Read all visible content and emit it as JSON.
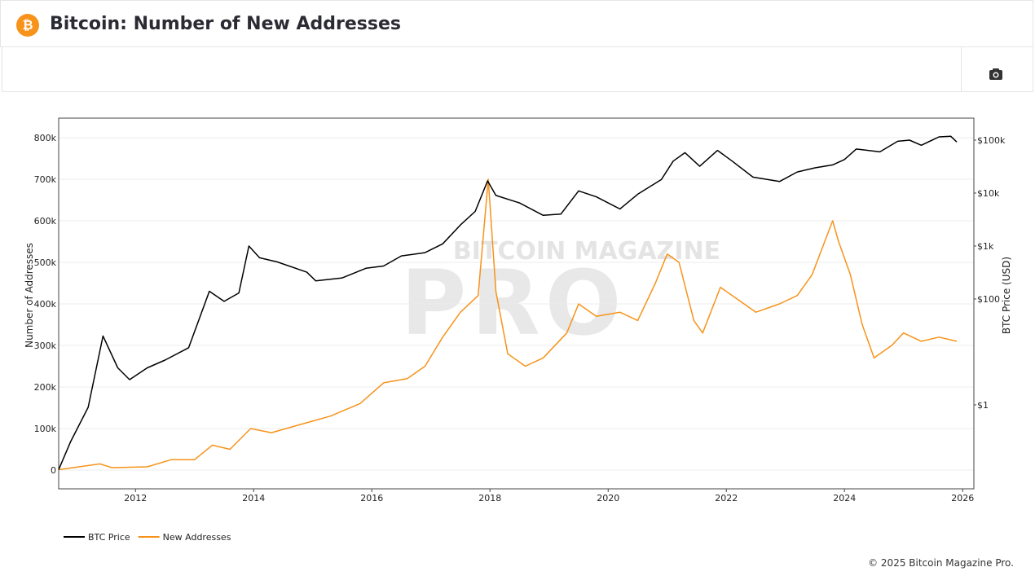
{
  "header": {
    "title": "Bitcoin: Number of New Addresses"
  },
  "footer": {
    "copyright": "© 2025 Bitcoin Magazine Pro."
  },
  "chart_data": {
    "type": "line",
    "watermark": [
      "BITCOIN MAGAZINE",
      "PRO"
    ],
    "y_label": "Number of Addresses",
    "y2_label": "BTC Price (USD)",
    "xlim": [
      2010.7,
      2026.19
    ],
    "xticks": [
      2012,
      2014,
      2016,
      2018,
      2020,
      2022,
      2024,
      2026
    ],
    "ylim": [
      -45000,
      847000
    ],
    "yticks": [
      0,
      {
        "value": 100000,
        "label": "100k"
      },
      {
        "value": 200000,
        "label": "200k"
      },
      {
        "value": 300000,
        "label": "300k"
      },
      {
        "value": 400000,
        "label": "400k"
      },
      {
        "value": 500000,
        "label": "500k"
      },
      {
        "value": 600000,
        "label": "600k"
      },
      {
        "value": 700000,
        "label": "700k"
      },
      {
        "value": 800000,
        "label": "800k"
      }
    ],
    "y2lim": [
      0.026,
      260000
    ],
    "y2_log": true,
    "y2ticks": [
      {
        "value": 1,
        "label": "$1"
      },
      {
        "value": 100,
        "label": "$100"
      },
      {
        "value": 1000,
        "label": "$1k"
      },
      {
        "value": 10000,
        "label": "$10k"
      },
      {
        "value": 100000,
        "label": "$100k"
      }
    ],
    "grid": true,
    "legend": "bottom-left",
    "series": [
      {
        "name": "BTC Price",
        "color": "#000000",
        "axis": "y2",
        "x": [
          2010.7,
          2010.9,
          2011.2,
          2011.45,
          2011.7,
          2011.9,
          2012.2,
          2012.5,
          2012.9,
          2013.25,
          2013.5,
          2013.75,
          2013.92,
          2014.1,
          2014.4,
          2014.9,
          2015.05,
          2015.5,
          2015.9,
          2016.2,
          2016.5,
          2016.9,
          2017.2,
          2017.5,
          2017.75,
          2017.96,
          2018.1,
          2018.5,
          2018.9,
          2019.2,
          2019.5,
          2019.8,
          2020.2,
          2020.5,
          2020.9,
          2021.1,
          2021.3,
          2021.55,
          2021.85,
          2022.1,
          2022.45,
          2022.9,
          2023.2,
          2023.5,
          2023.8,
          2024.0,
          2024.2,
          2024.6,
          2024.9,
          2025.1,
          2025.3,
          2025.6,
          2025.8,
          2025.9
        ],
        "values": [
          0.06,
          0.2,
          0.9,
          20,
          5,
          3,
          5,
          7,
          12,
          140,
          90,
          130,
          1000,
          600,
          500,
          320,
          220,
          250,
          380,
          420,
          650,
          750,
          1100,
          2500,
          4500,
          17000,
          9000,
          6500,
          3800,
          4000,
          11000,
          8500,
          5000,
          9500,
          18000,
          40000,
          58000,
          32000,
          64000,
          40000,
          20000,
          16500,
          25000,
          30000,
          34000,
          43000,
          68000,
          60000,
          95000,
          100000,
          80000,
          115000,
          118000,
          92000
        ]
      },
      {
        "name": "New Addresses",
        "color": "#f7931a",
        "axis": "y",
        "x": [
          2010.7,
          2011.4,
          2011.6,
          2012.2,
          2012.6,
          2013.0,
          2013.3,
          2013.6,
          2013.95,
          2014.3,
          2014.8,
          2015.3,
          2015.8,
          2016.2,
          2016.6,
          2016.9,
          2017.2,
          2017.5,
          2017.8,
          2017.97,
          2018.1,
          2018.3,
          2018.6,
          2018.9,
          2019.3,
          2019.5,
          2019.8,
          2020.2,
          2020.5,
          2020.8,
          2021.0,
          2021.2,
          2021.45,
          2021.6,
          2021.9,
          2022.2,
          2022.5,
          2022.9,
          2023.2,
          2023.45,
          2023.8,
          2023.9,
          2024.1,
          2024.3,
          2024.5,
          2024.8,
          2025.0,
          2025.3,
          2025.6,
          2025.9
        ],
        "values": [
          1000,
          15000,
          6000,
          8000,
          25000,
          25000,
          60000,
          50000,
          100000,
          90000,
          110000,
          130000,
          160000,
          210000,
          220000,
          250000,
          320000,
          380000,
          420000,
          700000,
          430000,
          280000,
          250000,
          270000,
          330000,
          400000,
          370000,
          380000,
          360000,
          450000,
          520000,
          500000,
          360000,
          330000,
          440000,
          410000,
          380000,
          400000,
          420000,
          470000,
          600000,
          550000,
          470000,
          350000,
          270000,
          300000,
          330000,
          310000,
          320000,
          310000
        ]
      }
    ]
  }
}
